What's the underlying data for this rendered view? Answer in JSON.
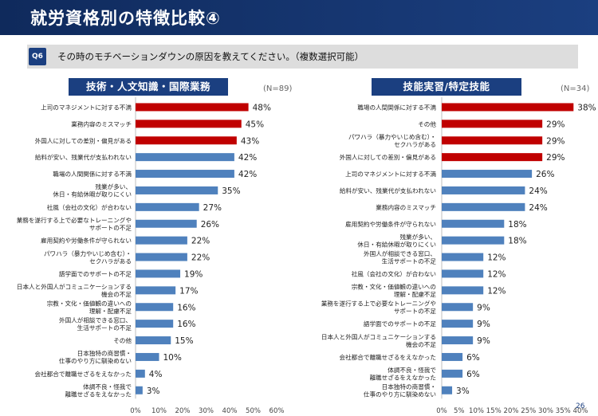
{
  "header": {
    "title": "就労資格別の特徴比較④"
  },
  "question": {
    "badge": "Q6",
    "text": "その時のモチベーションダウンの原因を教えてください。（複数選択可能）"
  },
  "colors": {
    "highlight": "#c00000",
    "bar": "#4f81bd",
    "header": "#1b3f80"
  },
  "page_number": "26",
  "chart_data": [
    {
      "type": "bar",
      "orientation": "horizontal",
      "title": "技術・人文知識・国際業務",
      "n_label": "(N=89)",
      "xlim": [
        0,
        60
      ],
      "ticks": [
        "0%",
        "10%",
        "20%",
        "30%",
        "40%",
        "50%",
        "60%"
      ],
      "categories": [
        [
          "上司のマネジメントに対する不満"
        ],
        [
          "業務内容のミスマッチ"
        ],
        [
          "外国人に対しての差別・偏見がある"
        ],
        [
          "給料が安い、残業代が支払われない"
        ],
        [
          "職場の人間関係に対する不満"
        ],
        [
          "残業が多い、",
          "休日・有給休暇が取りにくい"
        ],
        [
          "社風（会社の文化）が合わない"
        ],
        [
          "業務を遂行する上で必要なトレーニングや",
          "サポートの不足"
        ],
        [
          "雇用契約や労働条件が守られない"
        ],
        [
          "パワハラ（暴力やいじめ含む）・",
          "セクハラがある"
        ],
        [
          "語学面でのサポートの不足"
        ],
        [
          "日本人と外国人がコミュニケーションする",
          "機会の不足"
        ],
        [
          "宗教・文化・価値観の違いへの",
          "理解・配慮不足"
        ],
        [
          "外国人が相談できる窓口、",
          "生活サポートの不足"
        ],
        [
          "その他"
        ],
        [
          "日本独特の商習慣・",
          "仕事のやり方に馴染めない"
        ],
        [
          "会社都合で離職せざるをえなかった"
        ],
        [
          "体調不良・怪我で",
          "離職せざるをえなかった"
        ]
      ],
      "values": [
        48,
        45,
        43,
        42,
        42,
        35,
        27,
        26,
        22,
        22,
        19,
        17,
        16,
        16,
        15,
        10,
        4,
        3
      ],
      "value_labels": [
        "48%",
        "45%",
        "43%",
        "42%",
        "42%",
        "35%",
        "27%",
        "26%",
        "22%",
        "22%",
        "19%",
        "17%",
        "16%",
        "16%",
        "15%",
        "10%",
        "4%",
        "3%"
      ],
      "highlight_top": 3
    },
    {
      "type": "bar",
      "orientation": "horizontal",
      "title": "技能実習/特定技能",
      "n_label": "(N=34)",
      "xlim": [
        0,
        40
      ],
      "ticks": [
        "0%",
        "5%",
        "10%",
        "15%",
        "20%",
        "25%",
        "30%",
        "35%",
        "40%"
      ],
      "categories": [
        [
          "職場の人間関係に対する不満"
        ],
        [
          "その他"
        ],
        [
          "パワハラ（暴力やいじめ含む）・",
          "セクハラがある"
        ],
        [
          "外国人に対しての差別・偏見がある"
        ],
        [
          "上司のマネジメントに対する不満"
        ],
        [
          "給料が安い、残業代が支払われない"
        ],
        [
          "業務内容のミスマッチ"
        ],
        [
          "雇用契約や労働条件が守られない"
        ],
        [
          "残業が多い、",
          "休日・有給休暇が取りにくい"
        ],
        [
          "外国人が相談できる窓口、",
          "生活サポートの不足"
        ],
        [
          "社風（会社の文化）が合わない"
        ],
        [
          "宗教・文化・価値観の違いへの",
          "理解・配慮不足"
        ],
        [
          "業務を遂行する上で必要なトレーニングや",
          "サポートの不足"
        ],
        [
          "語学面でのサポートの不足"
        ],
        [
          "日本人と外国人がコミュニケーションする",
          "機会の不足"
        ],
        [
          "会社都合で離職せざるをえなかった"
        ],
        [
          "体調不良・怪我で",
          "離職せざるをえなかった"
        ],
        [
          "日本独特の商習慣・",
          "仕事のやり方に馴染めない"
        ]
      ],
      "values": [
        38,
        29,
        29,
        29,
        26,
        24,
        24,
        18,
        18,
        12,
        12,
        12,
        9,
        9,
        9,
        6,
        6,
        3
      ],
      "value_labels": [
        "38%",
        "29%",
        "29%",
        "29%",
        "26%",
        "24%",
        "24%",
        "18%",
        "18%",
        "12%",
        "12%",
        "12%",
        "9%",
        "9%",
        "9%",
        "6%",
        "6%",
        "3%"
      ],
      "highlight_top": 4
    }
  ]
}
